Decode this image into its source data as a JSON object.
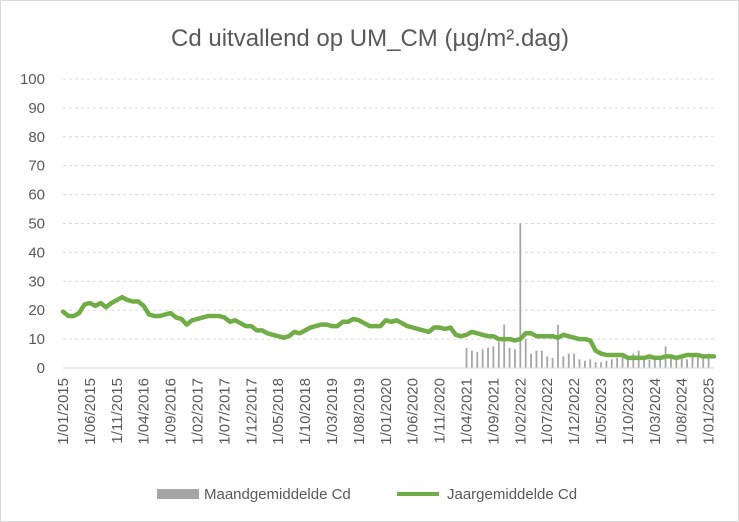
{
  "chart_data": {
    "type": "bar+line",
    "title": "Cd uitvallend op UM_CM (µg/m².dag)",
    "xlabel": "",
    "ylabel": "",
    "ylim": [
      0,
      100
    ],
    "y_ticks": [
      0,
      10,
      20,
      30,
      40,
      50,
      60,
      70,
      80,
      90,
      100
    ],
    "grid": "horizontal dashed",
    "legend_position": "bottom",
    "x_tick_labels": [
      "1/01/2015",
      "1/06/2015",
      "1/11/2015",
      "1/04/2016",
      "1/09/2016",
      "1/02/2017",
      "1/07/2017",
      "1/12/2017",
      "1/05/2018",
      "1/10/2018",
      "1/03/2019",
      "1/08/2019",
      "1/01/2020",
      "1/06/2020",
      "1/11/2020",
      "1/04/2021",
      "1/09/2021",
      "1/02/2022",
      "1/07/2022",
      "1/12/2022",
      "1/05/2023",
      "1/10/2023",
      "1/03/2024",
      "1/08/2024",
      "1/01/2025"
    ],
    "series": [
      {
        "name": "Maandgemiddelde Cd",
        "kind": "bar",
        "color": "#a5a5a5",
        "points": [
          [
            "2021-04",
            7
          ],
          [
            "2021-05",
            6
          ],
          [
            "2021-06",
            5.5
          ],
          [
            "2021-07",
            6.5
          ],
          [
            "2021-08",
            7
          ],
          [
            "2021-09",
            7.5
          ],
          [
            "2021-10",
            9
          ],
          [
            "2021-11",
            15
          ],
          [
            "2021-12",
            7
          ],
          [
            "2022-01",
            6.5
          ],
          [
            "2022-02",
            50
          ],
          [
            "2022-03",
            10
          ],
          [
            "2022-04",
            5
          ],
          [
            "2022-05",
            6
          ],
          [
            "2022-06",
            6
          ],
          [
            "2022-07",
            4
          ],
          [
            "2022-08",
            3.5
          ],
          [
            "2022-09",
            15
          ],
          [
            "2022-10",
            4
          ],
          [
            "2022-11",
            5
          ],
          [
            "2022-12",
            5
          ],
          [
            "2023-01",
            3
          ],
          [
            "2023-02",
            2.5
          ],
          [
            "2023-03",
            3
          ],
          [
            "2023-04",
            2
          ],
          [
            "2023-05",
            2
          ],
          [
            "2023-06",
            2.5
          ],
          [
            "2023-07",
            3
          ],
          [
            "2023-08",
            3.5
          ],
          [
            "2023-09",
            4
          ],
          [
            "2023-10",
            4
          ],
          [
            "2023-11",
            5
          ],
          [
            "2023-12",
            6
          ],
          [
            "2024-01",
            3.5
          ],
          [
            "2024-02",
            3
          ],
          [
            "2024-03",
            4
          ],
          [
            "2024-04",
            4
          ],
          [
            "2024-05",
            7.5
          ],
          [
            "2024-06",
            4
          ],
          [
            "2024-07",
            3.5
          ],
          [
            "2024-08",
            4
          ],
          [
            "2024-09",
            3
          ],
          [
            "2024-10",
            5
          ],
          [
            "2024-11",
            5
          ],
          [
            "2024-12",
            4
          ],
          [
            "2025-01",
            5
          ]
        ]
      },
      {
        "name": "Jaargemiddelde Cd",
        "kind": "line",
        "color": "#70ad47",
        "points": [
          [
            "2015-01",
            19.5
          ],
          [
            "2015-02",
            18
          ],
          [
            "2015-03",
            18
          ],
          [
            "2015-04",
            19
          ],
          [
            "2015-05",
            22
          ],
          [
            "2015-06",
            22.5
          ],
          [
            "2015-07",
            21.5
          ],
          [
            "2015-08",
            22.5
          ],
          [
            "2015-09",
            21
          ],
          [
            "2015-10",
            22.5
          ],
          [
            "2015-11",
            23.5
          ],
          [
            "2015-12",
            24.5
          ],
          [
            "2016-01",
            23.5
          ],
          [
            "2016-02",
            23
          ],
          [
            "2016-03",
            23
          ],
          [
            "2016-04",
            21.5
          ],
          [
            "2016-05",
            18.5
          ],
          [
            "2016-06",
            18
          ],
          [
            "2016-07",
            18
          ],
          [
            "2016-08",
            18.5
          ],
          [
            "2016-09",
            19
          ],
          [
            "2016-10",
            17.5
          ],
          [
            "2016-11",
            17
          ],
          [
            "2016-12",
            15
          ],
          [
            "2017-01",
            16.5
          ],
          [
            "2017-02",
            17
          ],
          [
            "2017-03",
            17.5
          ],
          [
            "2017-04",
            18
          ],
          [
            "2017-05",
            18
          ],
          [
            "2017-06",
            18
          ],
          [
            "2017-07",
            17.5
          ],
          [
            "2017-08",
            16
          ],
          [
            "2017-09",
            16.5
          ],
          [
            "2017-10",
            15.5
          ],
          [
            "2017-11",
            14.5
          ],
          [
            "2017-12",
            14.5
          ],
          [
            "2018-01",
            13
          ],
          [
            "2018-02",
            13
          ],
          [
            "2018-03",
            12
          ],
          [
            "2018-04",
            11.5
          ],
          [
            "2018-05",
            11
          ],
          [
            "2018-06",
            10.5
          ],
          [
            "2018-07",
            11
          ],
          [
            "2018-08",
            12.5
          ],
          [
            "2018-09",
            12
          ],
          [
            "2018-10",
            13
          ],
          [
            "2018-11",
            14
          ],
          [
            "2018-12",
            14.5
          ],
          [
            "2019-01",
            15
          ],
          [
            "2019-02",
            15
          ],
          [
            "2019-03",
            14.5
          ],
          [
            "2019-04",
            14.5
          ],
          [
            "2019-05",
            16
          ],
          [
            "2019-06",
            16
          ],
          [
            "2019-07",
            17
          ],
          [
            "2019-08",
            16.5
          ],
          [
            "2019-09",
            15.5
          ],
          [
            "2019-10",
            14.5
          ],
          [
            "2019-11",
            14.5
          ],
          [
            "2019-12",
            14.5
          ],
          [
            "2020-01",
            16.5
          ],
          [
            "2020-02",
            16
          ],
          [
            "2020-03",
            16.5
          ],
          [
            "2020-04",
            15.5
          ],
          [
            "2020-05",
            14.5
          ],
          [
            "2020-06",
            14
          ],
          [
            "2020-07",
            13.5
          ],
          [
            "2020-08",
            13
          ],
          [
            "2020-09",
            12.5
          ],
          [
            "2020-10",
            14
          ],
          [
            "2020-11",
            14
          ],
          [
            "2020-12",
            13.5
          ],
          [
            "2021-01",
            14
          ],
          [
            "2021-02",
            11.5
          ],
          [
            "2021-03",
            11
          ],
          [
            "2021-04",
            11.5
          ],
          [
            "2021-05",
            12.5
          ],
          [
            "2021-06",
            12
          ],
          [
            "2021-07",
            11.5
          ],
          [
            "2021-08",
            11
          ],
          [
            "2021-09",
            11
          ],
          [
            "2021-10",
            10
          ],
          [
            "2021-11",
            10
          ],
          [
            "2021-12",
            10
          ],
          [
            "2022-01",
            9.5
          ],
          [
            "2022-02",
            10
          ],
          [
            "2022-03",
            12
          ],
          [
            "2022-04",
            12
          ],
          [
            "2022-05",
            11
          ],
          [
            "2022-06",
            11
          ],
          [
            "2022-07",
            11
          ],
          [
            "2022-08",
            11
          ],
          [
            "2022-09",
            10.5
          ],
          [
            "2022-10",
            11.5
          ],
          [
            "2022-11",
            11
          ],
          [
            "2022-12",
            10.5
          ],
          [
            "2023-01",
            10
          ],
          [
            "2023-02",
            10
          ],
          [
            "2023-03",
            9.5
          ],
          [
            "2023-04",
            6
          ],
          [
            "2023-05",
            5
          ],
          [
            "2023-06",
            4.5
          ],
          [
            "2023-07",
            4.5
          ],
          [
            "2023-08",
            4.5
          ],
          [
            "2023-09",
            4.5
          ],
          [
            "2023-10",
            3.5
          ],
          [
            "2023-11",
            3.5
          ],
          [
            "2023-12",
            3.5
          ],
          [
            "2024-01",
            3.5
          ],
          [
            "2024-02",
            4
          ],
          [
            "2024-03",
            3.5
          ],
          [
            "2024-04",
            3.5
          ],
          [
            "2024-05",
            4
          ],
          [
            "2024-06",
            4
          ],
          [
            "2024-07",
            3.5
          ],
          [
            "2024-08",
            4
          ],
          [
            "2024-09",
            4.5
          ],
          [
            "2024-10",
            4.5
          ],
          [
            "2024-11",
            4.5
          ],
          [
            "2024-12",
            4
          ],
          [
            "2025-01",
            4
          ],
          [
            "2025-02",
            4
          ]
        ]
      }
    ]
  }
}
